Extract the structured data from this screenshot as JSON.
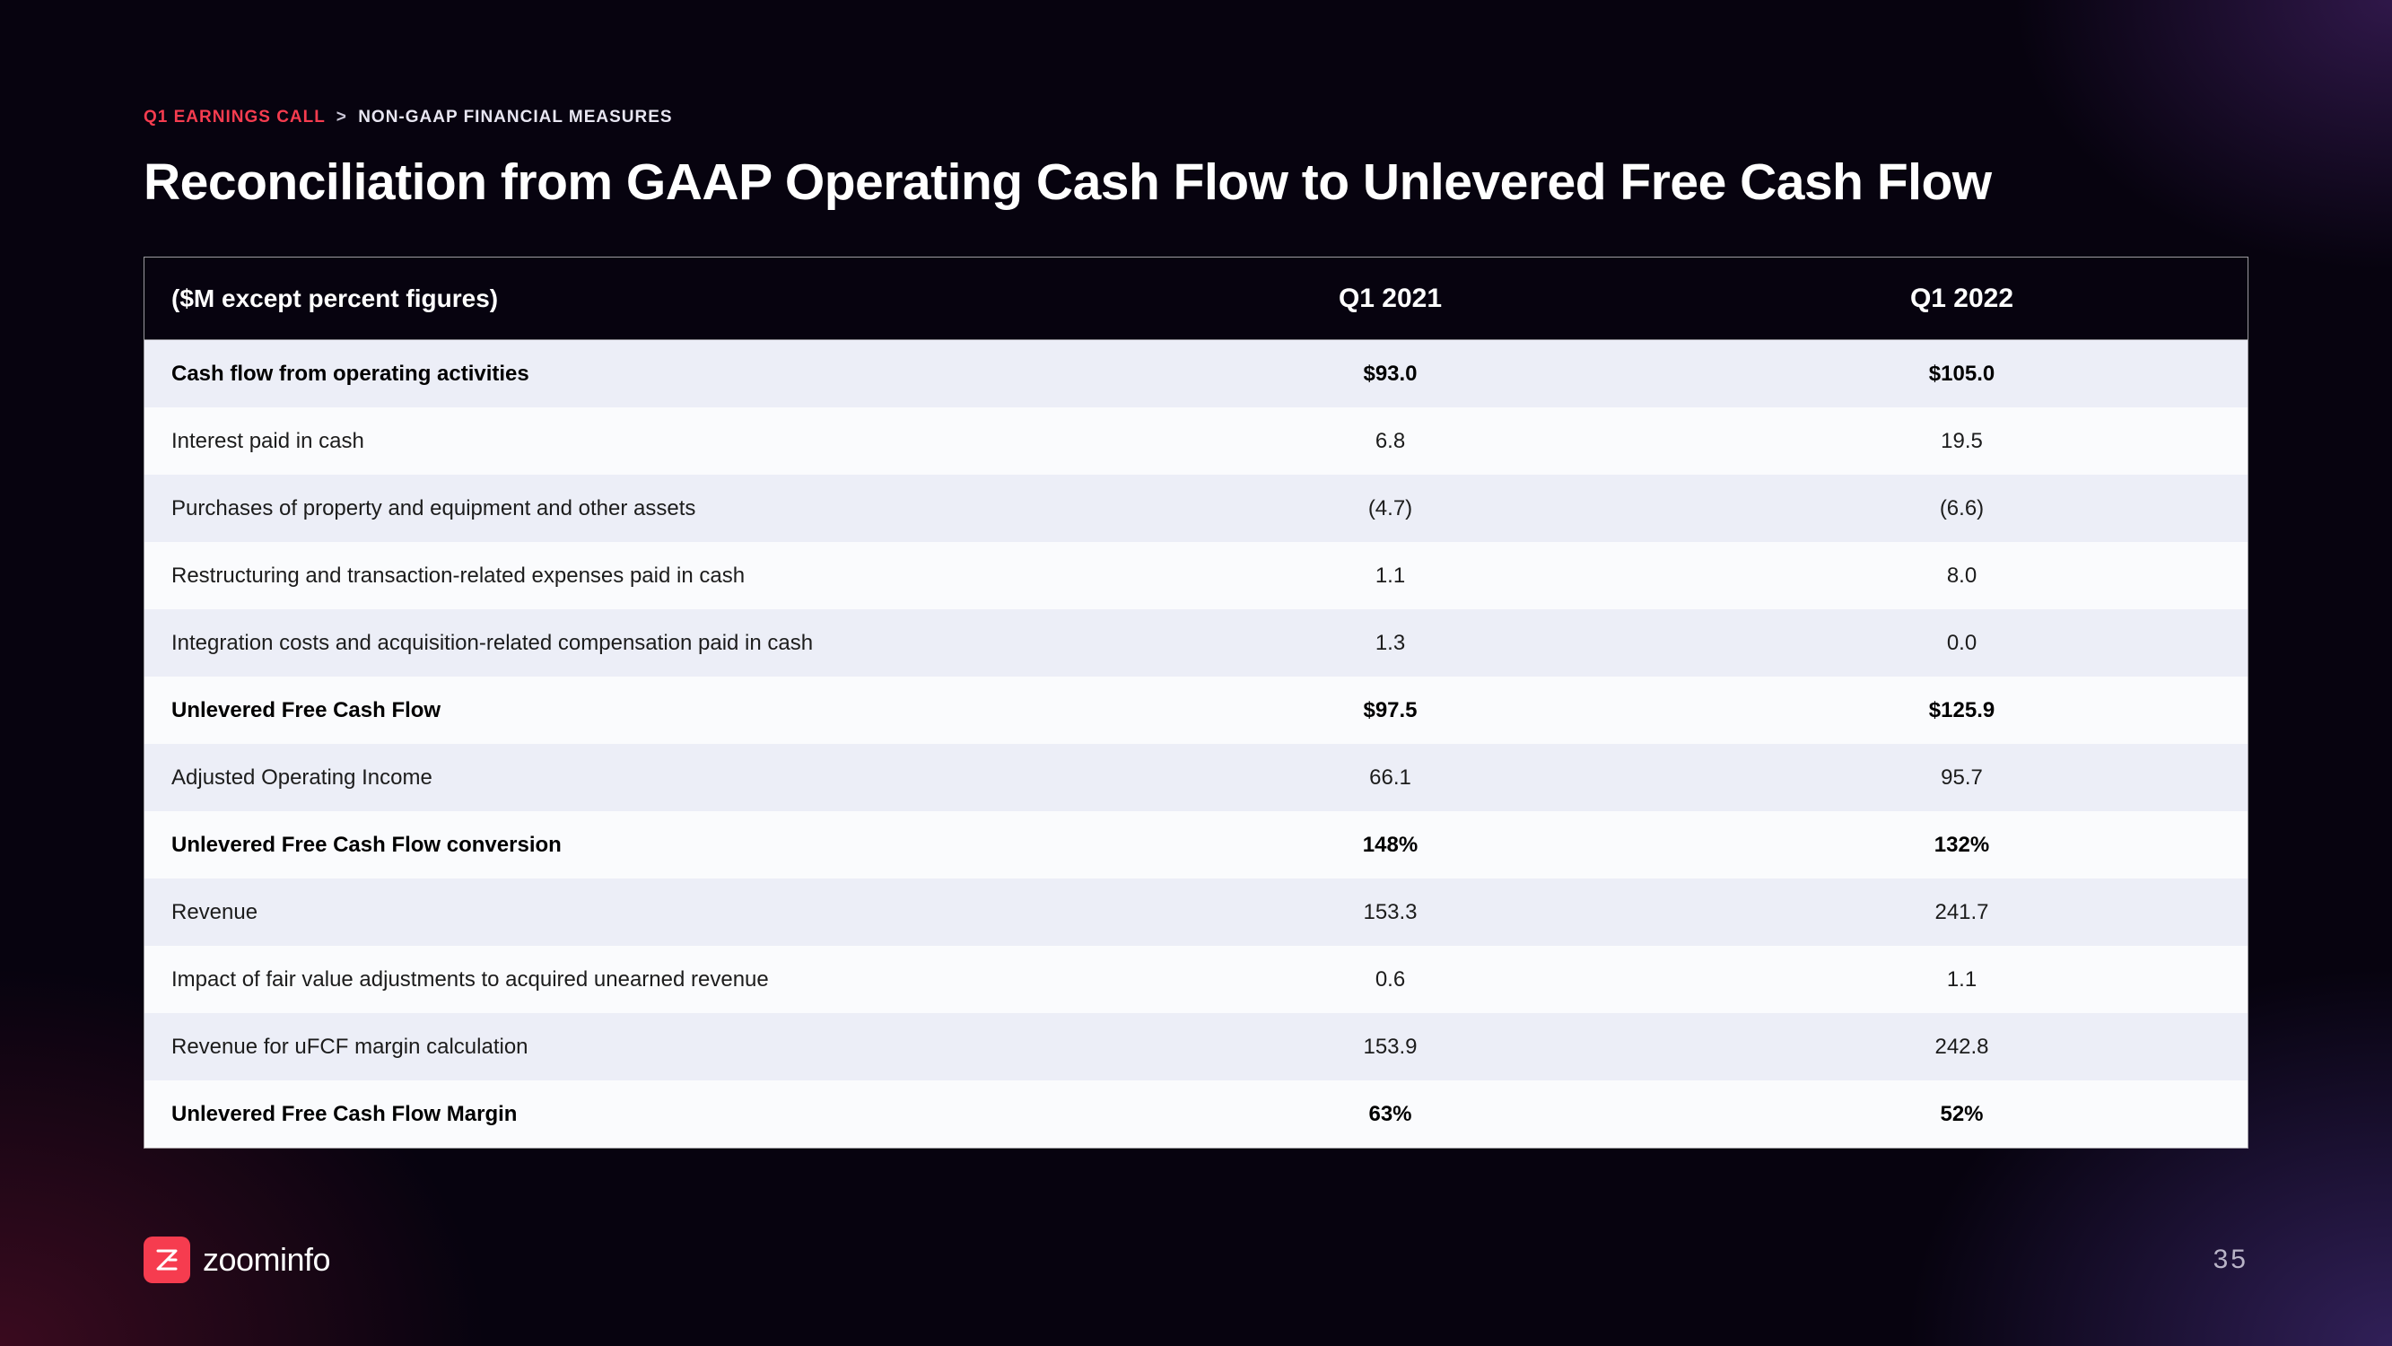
{
  "breadcrumb": {
    "part1": "Q1 EARNINGS CALL",
    "separator": ">",
    "part2": "NON-GAAP FINANCIAL MEASURES"
  },
  "title": "Reconciliation from GAAP Operating Cash Flow to Unlevered Free Cash Flow",
  "table": {
    "header": {
      "label": "($M except percent figures)",
      "col1": "Q1 2021",
      "col2": "Q1 2022"
    },
    "rows": [
      {
        "label": "Cash flow from operating activities",
        "v1": "$93.0",
        "v2": "$105.0",
        "bold": true
      },
      {
        "label": "Interest paid in cash",
        "v1": "6.8",
        "v2": "19.5",
        "bold": false
      },
      {
        "label": "Purchases of property and equipment and other assets",
        "v1": "(4.7)",
        "v2": "(6.6)",
        "bold": false
      },
      {
        "label": "Restructuring and transaction-related expenses paid in cash",
        "v1": "1.1",
        "v2": "8.0",
        "bold": false
      },
      {
        "label": "Integration costs and acquisition-related compensation paid in cash",
        "v1": "1.3",
        "v2": "0.0",
        "bold": false
      },
      {
        "label": "Unlevered Free Cash Flow",
        "v1": "$97.5",
        "v2": "$125.9",
        "bold": true
      },
      {
        "label": "Adjusted Operating Income",
        "v1": "66.1",
        "v2": "95.7",
        "bold": false
      },
      {
        "label": "Unlevered Free Cash Flow conversion",
        "v1": "148%",
        "v2": "132%",
        "bold": true
      },
      {
        "label": "Revenue",
        "v1": "153.3",
        "v2": "241.7",
        "bold": false
      },
      {
        "label": "Impact of fair value adjustments to acquired unearned revenue",
        "v1": "0.6",
        "v2": "1.1",
        "bold": false
      },
      {
        "label": "Revenue for uFCF margin calculation",
        "v1": "153.9",
        "v2": "242.8",
        "bold": false
      },
      {
        "label": "Unlevered Free Cash Flow Margin",
        "v1": "63%",
        "v2": "52%",
        "bold": true
      }
    ],
    "row_colors": {
      "alt0": "#eceef7",
      "alt1": "#fafbfd"
    },
    "text_color": "#1c1c1c",
    "header_bg": "transparent",
    "header_color": "#ffffff",
    "border_color": "rgba(255,255,255,0.6)",
    "label_fontsize": 24,
    "header_fontsize": 28
  },
  "footer": {
    "brand": "zoominfo",
    "brand_color": "#f63c4f",
    "page_number": "35"
  },
  "styling": {
    "background_base": "#07030f",
    "title_color": "#ffffff",
    "title_fontsize": 57,
    "breadcrumb_accent": "#f63c4f",
    "breadcrumb_color": "#e8e6f2",
    "pagenum_color": "#b9b4c7"
  }
}
